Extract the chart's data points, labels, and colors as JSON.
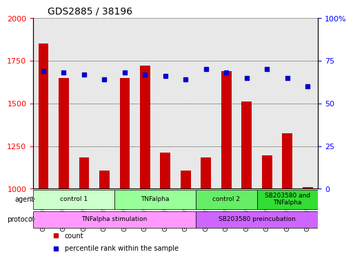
{
  "title": "GDS2885 / 38196",
  "samples": [
    "GSM189807",
    "GSM189809",
    "GSM189811",
    "GSM189813",
    "GSM189806",
    "GSM189808",
    "GSM189810",
    "GSM189812",
    "GSM189815",
    "GSM189817",
    "GSM189819",
    "GSM189814",
    "GSM189816",
    "GSM189818"
  ],
  "counts": [
    1850,
    1650,
    1185,
    1105,
    1650,
    1720,
    1210,
    1105,
    1185,
    1690,
    1510,
    1195,
    1325,
    1010
  ],
  "percentiles": [
    69,
    68,
    67,
    64,
    68,
    67,
    66,
    64,
    70,
    68,
    65,
    70,
    65,
    60
  ],
  "ylim_left": [
    1000,
    2000
  ],
  "ylim_right": [
    0,
    100
  ],
  "yticks_left": [
    1000,
    1250,
    1500,
    1750,
    2000
  ],
  "yticks_right": [
    0,
    25,
    50,
    75,
    100
  ],
  "ytick_right_labels": [
    "0",
    "25",
    "50",
    "75",
    "100%"
  ],
  "bar_color": "#cc0000",
  "dot_color": "#0000cc",
  "agent_groups": [
    {
      "label": "control 1",
      "start": 0,
      "end": 4,
      "color": "#ccffcc"
    },
    {
      "label": "TNFalpha",
      "start": 4,
      "end": 8,
      "color": "#99ff99"
    },
    {
      "label": "control 2",
      "start": 8,
      "end": 11,
      "color": "#66ee66"
    },
    {
      "label": "SB203580 and\nTNFalpha",
      "start": 11,
      "end": 14,
      "color": "#33dd33"
    }
  ],
  "protocol_groups": [
    {
      "label": "TNFalpha stimulation",
      "start": 0,
      "end": 8,
      "color": "#ff99ff"
    },
    {
      "label": "SB203580 preincubation",
      "start": 8,
      "end": 14,
      "color": "#cc66ff"
    }
  ],
  "axis_bg": "#e8e8e8",
  "grid_color": "#000000",
  "legend_count_label": "count",
  "legend_pct_label": "percentile rank within the sample"
}
